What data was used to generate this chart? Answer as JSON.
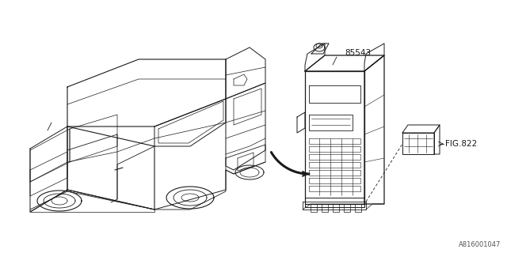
{
  "background_color": "#ffffff",
  "line_color": "#1a1a1a",
  "fig_width": 6.4,
  "fig_height": 3.2,
  "dpi": 100,
  "part_number": "85543",
  "part_ref": "FIG.822",
  "diagram_id": "A816001047"
}
